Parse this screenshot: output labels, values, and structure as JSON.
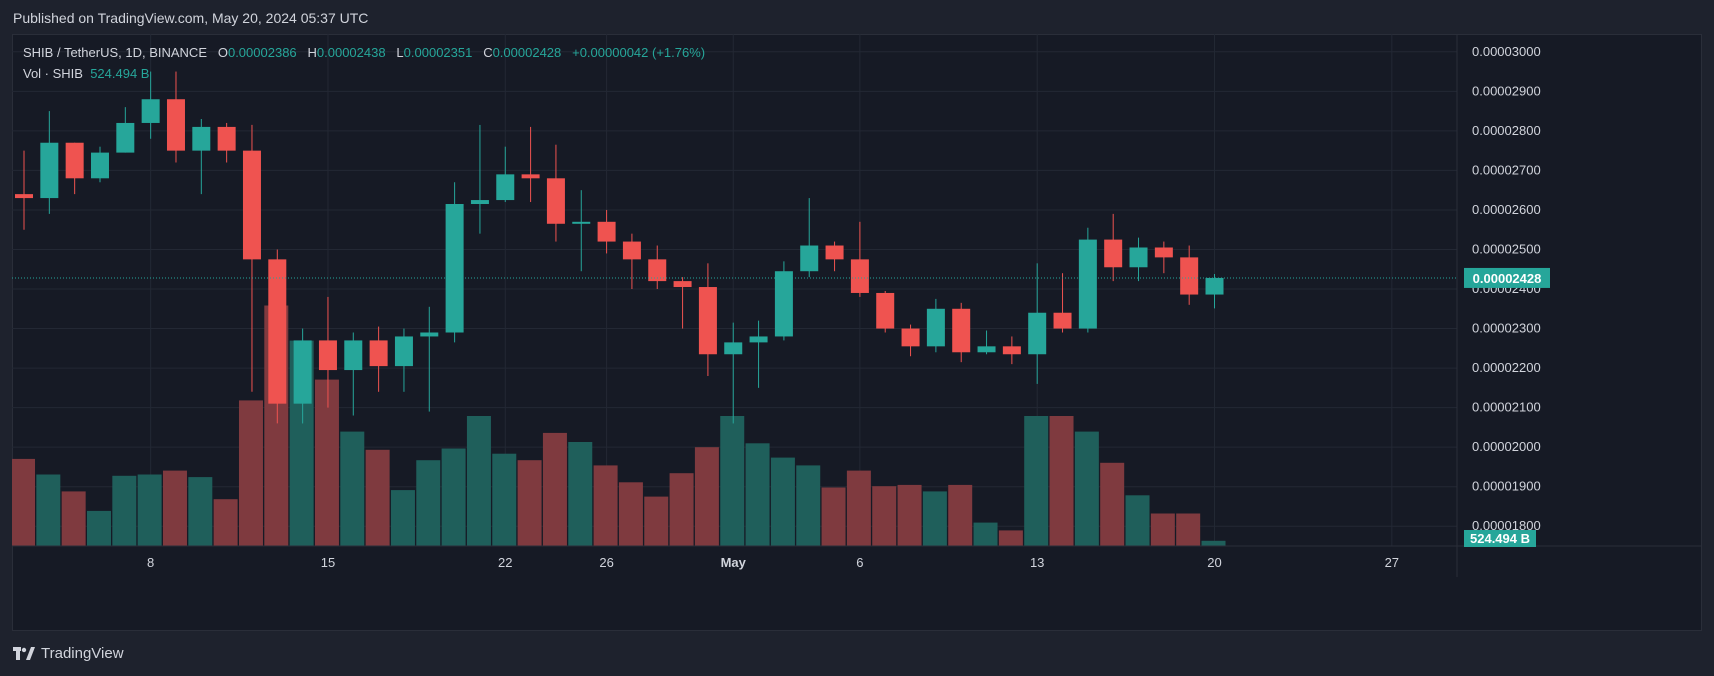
{
  "header": {
    "published": "Published on TradingView.com, May 20, 2024 05:37 UTC"
  },
  "legend": {
    "symbol": "SHIB / TetherUS, 1D, BINANCE",
    "o_label": "O",
    "o_value": "0.00002386",
    "h_label": "H",
    "h_value": "0.00002438",
    "l_label": "L",
    "l_value": "0.00002351",
    "c_label": "C",
    "c_value": "0.00002428",
    "change": "+0.00000042 (+1.76%)",
    "vol_label": "Vol · SHIB",
    "vol_value": "524.494 B"
  },
  "footer": {
    "brand": "TradingView",
    "logo_icon": "tradingview-logo-icon"
  },
  "colors": {
    "up": "#26a69a",
    "down": "#ef5350",
    "vol_up": "#1f5f5b",
    "vol_down": "#7f3a3f",
    "grid": "#232834",
    "axis_text": "#d1d4dc",
    "last_price_bg": "#26a69a"
  },
  "chart_data": {
    "type": "candlestick",
    "title": "SHIB / TetherUS, 1D, BINANCE",
    "grid": true,
    "ylim": [
      1.75e-05,
      3.045e-05
    ],
    "y_ticks": [
      "0.00001800",
      "0.00001900",
      "0.00002000",
      "0.00002100",
      "0.00002200",
      "0.00002300",
      "0.00002400",
      "0.00002500",
      "0.00002600",
      "0.00002700",
      "0.00002800",
      "0.00002900",
      "0.00003000"
    ],
    "last_price": "0.00002428",
    "last_volume": "524.494 B",
    "x_ticks": [
      {
        "label": "8",
        "index": 5
      },
      {
        "label": "15",
        "index": 12
      },
      {
        "label": "22",
        "index": 19
      },
      {
        "label": "26",
        "index": 23
      },
      {
        "label": "May",
        "index": 28
      },
      {
        "label": "6",
        "index": 33
      },
      {
        "label": "13",
        "index": 40
      },
      {
        "label": "20",
        "index": 47
      },
      {
        "label": "27",
        "index": 54
      }
    ],
    "candles": [
      {
        "o": 2.64e-05,
        "h": 2.75e-05,
        "l": 2.55e-05,
        "c": 2.63e-05,
        "v": 0.67
      },
      {
        "o": 2.63e-05,
        "h": 2.85e-05,
        "l": 2.59e-05,
        "c": 2.77e-05,
        "v": 0.55
      },
      {
        "o": 2.77e-05,
        "h": 2.77e-05,
        "l": 2.64e-05,
        "c": 2.68e-05,
        "v": 0.42
      },
      {
        "o": 2.68e-05,
        "h": 2.76e-05,
        "l": 2.67e-05,
        "c": 2.745e-05,
        "v": 0.27
      },
      {
        "o": 2.745e-05,
        "h": 2.86e-05,
        "l": 2.745e-05,
        "c": 2.82e-05,
        "v": 0.54
      },
      {
        "o": 2.82e-05,
        "h": 2.95e-05,
        "l": 2.78e-05,
        "c": 2.88e-05,
        "v": 0.55
      },
      {
        "o": 2.88e-05,
        "h": 2.95e-05,
        "l": 2.72e-05,
        "c": 2.75e-05,
        "v": 0.58
      },
      {
        "o": 2.75e-05,
        "h": 2.83e-05,
        "l": 2.64e-05,
        "c": 2.81e-05,
        "v": 0.53
      },
      {
        "o": 2.81e-05,
        "h": 2.82e-05,
        "l": 2.72e-05,
        "c": 2.75e-05,
        "v": 0.36
      },
      {
        "o": 2.75e-05,
        "h": 2.815e-05,
        "l": 2.14e-05,
        "c": 2.475e-05,
        "v": 1.12
      },
      {
        "o": 2.475e-05,
        "h": 2.5e-05,
        "l": 2.06e-05,
        "c": 2.11e-05,
        "v": 1.85
      },
      {
        "o": 2.11e-05,
        "h": 2.3e-05,
        "l": 2.06e-05,
        "c": 2.27e-05,
        "v": 1.58
      },
      {
        "o": 2.27e-05,
        "h": 2.38e-05,
        "l": 2.1e-05,
        "c": 2.195e-05,
        "v": 1.28
      },
      {
        "o": 2.195e-05,
        "h": 2.29e-05,
        "l": 2.08e-05,
        "c": 2.27e-05,
        "v": 0.88
      },
      {
        "o": 2.27e-05,
        "h": 2.305e-05,
        "l": 2.14e-05,
        "c": 2.205e-05,
        "v": 0.74
      },
      {
        "o": 2.205e-05,
        "h": 2.3e-05,
        "l": 2.14e-05,
        "c": 2.28e-05,
        "v": 0.43
      },
      {
        "o": 2.28e-05,
        "h": 2.355e-05,
        "l": 2.09e-05,
        "c": 2.29e-05,
        "v": 0.66
      },
      {
        "o": 2.29e-05,
        "h": 2.67e-05,
        "l": 2.265e-05,
        "c": 2.615e-05,
        "v": 0.75
      },
      {
        "o": 2.615e-05,
        "h": 2.815e-05,
        "l": 2.54e-05,
        "c": 2.625e-05,
        "v": 1.0
      },
      {
        "o": 2.625e-05,
        "h": 2.76e-05,
        "l": 2.62e-05,
        "c": 2.69e-05,
        "v": 0.71
      },
      {
        "o": 2.69e-05,
        "h": 2.81e-05,
        "l": 2.62e-05,
        "c": 2.68e-05,
        "v": 0.66
      },
      {
        "o": 2.68e-05,
        "h": 2.765e-05,
        "l": 2.52e-05,
        "c": 2.565e-05,
        "v": 0.87
      },
      {
        "o": 2.565e-05,
        "h": 2.65e-05,
        "l": 2.445e-05,
        "c": 2.57e-05,
        "v": 0.8
      },
      {
        "o": 2.57e-05,
        "h": 2.6e-05,
        "l": 2.49e-05,
        "c": 2.52e-05,
        "v": 0.62
      },
      {
        "o": 2.52e-05,
        "h": 2.54e-05,
        "l": 2.4e-05,
        "c": 2.475e-05,
        "v": 0.49
      },
      {
        "o": 2.475e-05,
        "h": 2.51e-05,
        "l": 2.4e-05,
        "c": 2.42e-05,
        "v": 0.38
      },
      {
        "o": 2.42e-05,
        "h": 2.43e-05,
        "l": 2.3e-05,
        "c": 2.405e-05,
        "v": 0.56
      },
      {
        "o": 2.405e-05,
        "h": 2.465e-05,
        "l": 2.18e-05,
        "c": 2.235e-05,
        "v": 0.76
      },
      {
        "o": 2.235e-05,
        "h": 2.315e-05,
        "l": 2.06e-05,
        "c": 2.265e-05,
        "v": 1.0
      },
      {
        "o": 2.265e-05,
        "h": 2.32e-05,
        "l": 2.15e-05,
        "c": 2.28e-05,
        "v": 0.79
      },
      {
        "o": 2.28e-05,
        "h": 2.47e-05,
        "l": 2.27e-05,
        "c": 2.445e-05,
        "v": 0.68
      },
      {
        "o": 2.445e-05,
        "h": 2.63e-05,
        "l": 2.43e-05,
        "c": 2.51e-05,
        "v": 0.62
      },
      {
        "o": 2.51e-05,
        "h": 2.52e-05,
        "l": 2.445e-05,
        "c": 2.475e-05,
        "v": 0.45
      },
      {
        "o": 2.475e-05,
        "h": 2.57e-05,
        "l": 2.38e-05,
        "c": 2.39e-05,
        "v": 0.58
      },
      {
        "o": 2.39e-05,
        "h": 2.395e-05,
        "l": 2.29e-05,
        "c": 2.3e-05,
        "v": 0.46
      },
      {
        "o": 2.3e-05,
        "h": 2.31e-05,
        "l": 2.23e-05,
        "c": 2.255e-05,
        "v": 0.47
      },
      {
        "o": 2.255e-05,
        "h": 2.375e-05,
        "l": 2.24e-05,
        "c": 2.35e-05,
        "v": 0.42
      },
      {
        "o": 2.35e-05,
        "h": 2.365e-05,
        "l": 2.215e-05,
        "c": 2.24e-05,
        "v": 0.47
      },
      {
        "o": 2.24e-05,
        "h": 2.295e-05,
        "l": 2.235e-05,
        "c": 2.255e-05,
        "v": 0.18
      },
      {
        "o": 2.255e-05,
        "h": 2.28e-05,
        "l": 2.21e-05,
        "c": 2.235e-05,
        "v": 0.12
      },
      {
        "o": 2.235e-05,
        "h": 2.465e-05,
        "l": 2.16e-05,
        "c": 2.34e-05,
        "v": 1.0
      },
      {
        "o": 2.34e-05,
        "h": 2.44e-05,
        "l": 2.29e-05,
        "c": 2.3e-05,
        "v": 1.0
      },
      {
        "o": 2.3e-05,
        "h": 2.555e-05,
        "l": 2.29e-05,
        "c": 2.525e-05,
        "v": 0.88
      },
      {
        "o": 2.525e-05,
        "h": 2.59e-05,
        "l": 2.42e-05,
        "c": 2.455e-05,
        "v": 0.64
      },
      {
        "o": 2.455e-05,
        "h": 2.53e-05,
        "l": 2.42e-05,
        "c": 2.505e-05,
        "v": 0.39
      },
      {
        "o": 2.505e-05,
        "h": 2.52e-05,
        "l": 2.44e-05,
        "c": 2.48e-05,
        "v": 0.25
      },
      {
        "o": 2.48e-05,
        "h": 2.51e-05,
        "l": 2.36e-05,
        "c": 2.386e-05,
        "v": 0.25
      },
      {
        "o": 2.386e-05,
        "h": 2.438e-05,
        "l": 2.351e-05,
        "c": 2.428e-05,
        "v": 0.04
      }
    ]
  }
}
